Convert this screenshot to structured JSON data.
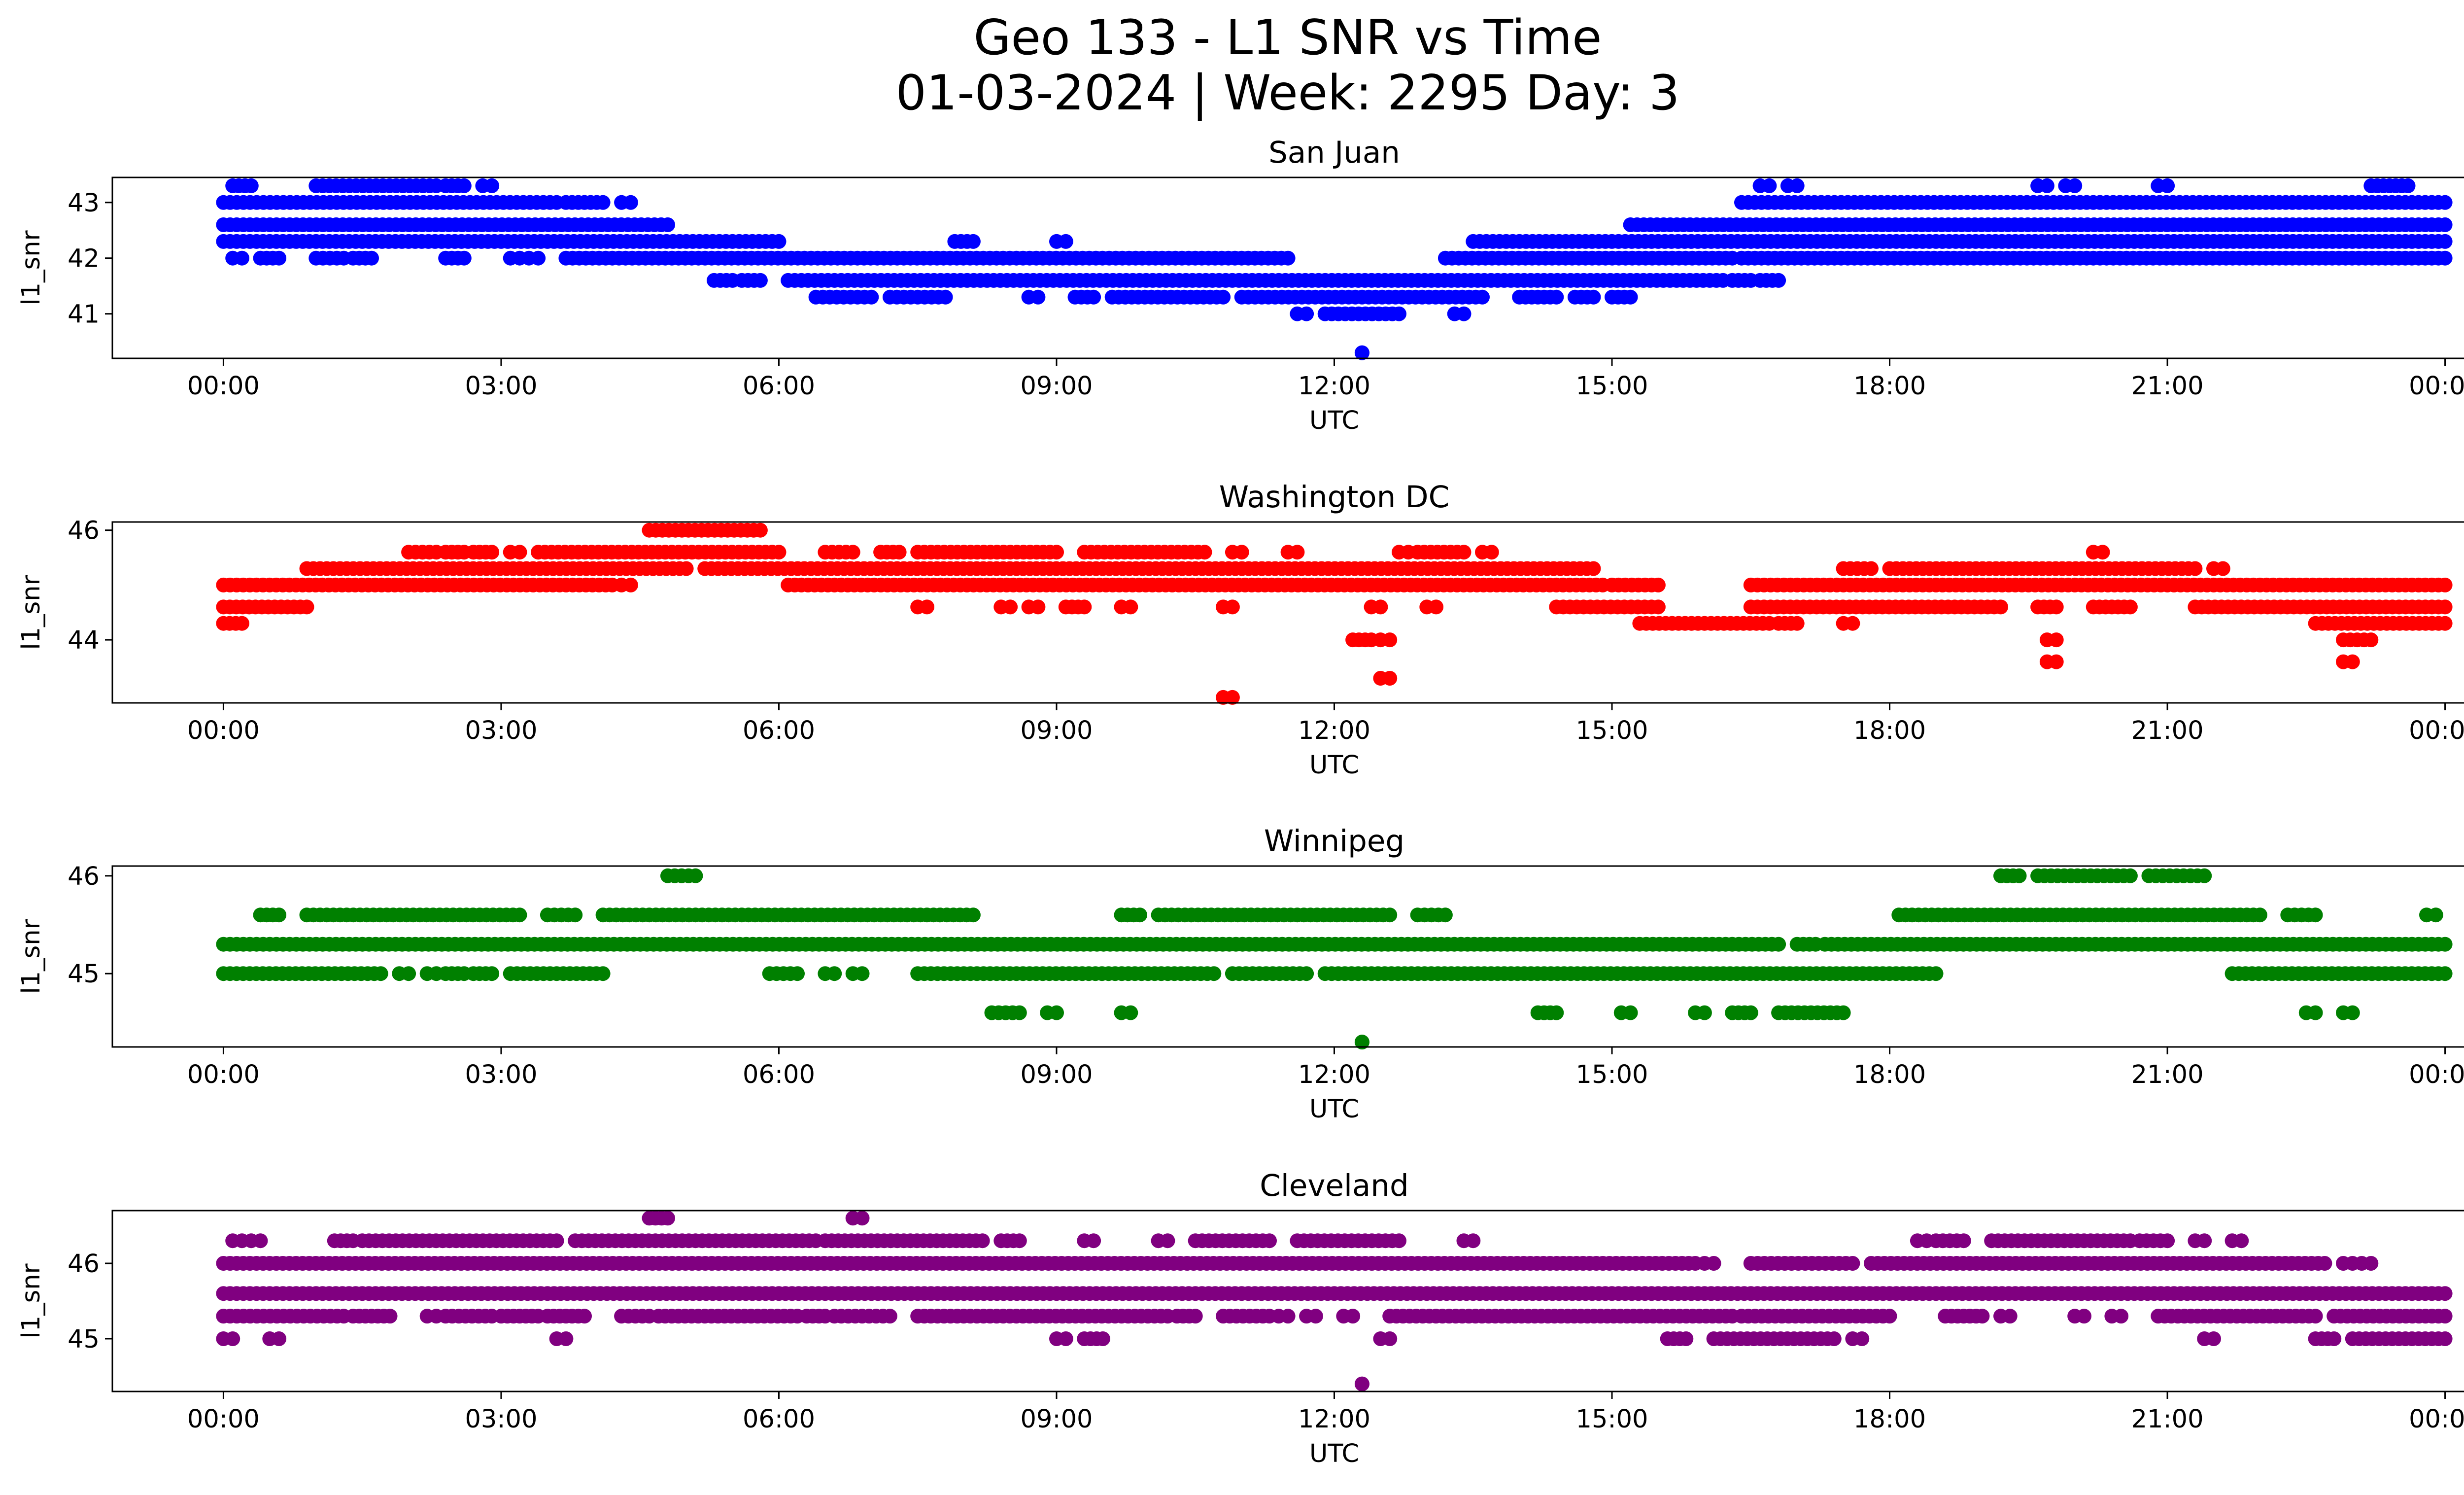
{
  "figure": {
    "title_line1": "Geo 133 - L1 SNR vs Time",
    "title_line2": "01-03-2024 | Week: 2295 Day: 3"
  },
  "chart_data": [
    {
      "type": "scatter",
      "title": "San Juan",
      "xlabel": "UTC",
      "ylabel": "l1_snr",
      "color": "#0000ff",
      "x_ticks": [
        "00:00",
        "03:00",
        "06:00",
        "09:00",
        "12:00",
        "15:00",
        "18:00",
        "21:00",
        "00:00"
      ],
      "xlim_hours": [
        -1.2,
        25.2
      ],
      "yticks": [
        41,
        42,
        43
      ],
      "ylim": [
        40.2,
        43.45
      ],
      "levels": [
        {
          "y": 43.3,
          "ranges": [
            [
              0.1,
              0.3
            ],
            [
              1.0,
              2.3
            ],
            [
              2.4,
              2.6
            ],
            [
              2.8,
              2.9
            ],
            [
              16.6,
              16.7
            ],
            [
              16.9,
              17.0
            ],
            [
              19.6,
              19.7
            ],
            [
              19.9,
              20.0
            ],
            [
              20.9,
              21.0
            ],
            [
              23.2,
              23.6
            ]
          ]
        },
        {
          "y": 43.0,
          "ranges": [
            [
              0.0,
              3.6
            ],
            [
              3.7,
              4.1
            ],
            [
              4.3,
              4.4
            ],
            [
              16.4,
              24.0
            ]
          ]
        },
        {
          "y": 42.6,
          "ranges": [
            [
              0.0,
              4.8
            ],
            [
              15.2,
              24.0
            ]
          ]
        },
        {
          "y": 42.3,
          "ranges": [
            [
              0.0,
              6.0
            ],
            [
              7.9,
              8.1
            ],
            [
              9.0,
              9.1
            ],
            [
              13.5,
              24.0
            ]
          ]
        },
        {
          "y": 42.0,
          "ranges": [
            [
              0.1,
              0.2
            ],
            [
              0.4,
              0.6
            ],
            [
              1.0,
              1.3
            ],
            [
              1.4,
              1.6
            ],
            [
              2.4,
              2.6
            ],
            [
              3.1,
              3.2
            ],
            [
              3.3,
              3.4
            ],
            [
              3.7,
              11.5
            ],
            [
              13.2,
              16.3
            ],
            [
              16.4,
              24.0
            ]
          ]
        },
        {
          "y": 41.6,
          "ranges": [
            [
              5.3,
              5.5
            ],
            [
              5.6,
              5.8
            ],
            [
              6.1,
              16.2
            ],
            [
              16.3,
              16.5
            ],
            [
              16.6,
              16.8
            ]
          ]
        },
        {
          "y": 41.3,
          "ranges": [
            [
              6.4,
              7.0
            ],
            [
              7.2,
              7.8
            ],
            [
              8.7,
              8.8
            ],
            [
              9.2,
              9.4
            ],
            [
              9.6,
              10.8
            ],
            [
              11.0,
              13.6
            ],
            [
              14.0,
              14.4
            ],
            [
              14.6,
              14.8
            ],
            [
              15.0,
              15.2
            ]
          ]
        },
        {
          "y": 41.0,
          "ranges": [
            [
              11.6,
              11.7
            ],
            [
              11.9,
              12.7
            ],
            [
              13.3,
              13.4
            ]
          ]
        },
        {
          "y": 40.3,
          "ranges": [
            [
              12.3,
              12.3
            ]
          ]
        }
      ]
    },
    {
      "type": "scatter",
      "title": "Washington DC",
      "xlabel": "UTC",
      "ylabel": "l1_snr",
      "color": "#ff0000",
      "x_ticks": [
        "00:00",
        "03:00",
        "06:00",
        "09:00",
        "12:00",
        "15:00",
        "18:00",
        "21:00",
        "00:00"
      ],
      "xlim_hours": [
        -1.2,
        25.2
      ],
      "yticks": [
        44,
        46
      ],
      "ylim": [
        42.85,
        46.15
      ],
      "levels": [
        {
          "y": 46.0,
          "ranges": [
            [
              4.6,
              5.8
            ]
          ]
        },
        {
          "y": 45.6,
          "ranges": [
            [
              2.0,
              2.3
            ],
            [
              2.4,
              2.6
            ],
            [
              2.7,
              2.9
            ],
            [
              3.1,
              3.2
            ],
            [
              3.4,
              6.0
            ],
            [
              6.5,
              6.8
            ],
            [
              7.1,
              7.3
            ],
            [
              7.5,
              9.0
            ],
            [
              9.3,
              10.6
            ],
            [
              10.9,
              11.0
            ],
            [
              11.5,
              11.6
            ],
            [
              12.7,
              12.8
            ],
            [
              12.9,
              13.4
            ],
            [
              13.6,
              13.7
            ],
            [
              20.2,
              20.3
            ]
          ]
        },
        {
          "y": 45.3,
          "ranges": [
            [
              0.9,
              5.0
            ],
            [
              5.2,
              14.8
            ],
            [
              17.5,
              17.8
            ],
            [
              18.0,
              21.3
            ],
            [
              21.5,
              21.6
            ]
          ]
        },
        {
          "y": 45.0,
          "ranges": [
            [
              0.0,
              4.2
            ],
            [
              4.3,
              4.4
            ],
            [
              6.1,
              14.9
            ],
            [
              15.0,
              15.5
            ],
            [
              16.5,
              24.0
            ]
          ]
        },
        {
          "y": 44.6,
          "ranges": [
            [
              0.0,
              0.9
            ],
            [
              7.5,
              7.6
            ],
            [
              8.4,
              8.5
            ],
            [
              8.7,
              8.8
            ],
            [
              9.1,
              9.3
            ],
            [
              9.7,
              9.8
            ],
            [
              10.8,
              10.9
            ],
            [
              12.4,
              12.5
            ],
            [
              13.0,
              13.1
            ],
            [
              14.4,
              15.5
            ],
            [
              16.5,
              19.2
            ],
            [
              19.6,
              19.8
            ],
            [
              20.2,
              20.6
            ],
            [
              21.3,
              24.0
            ]
          ]
        },
        {
          "y": 44.3,
          "ranges": [
            [
              0.0,
              0.2
            ],
            [
              15.3,
              16.7
            ],
            [
              16.8,
              17.0
            ],
            [
              17.5,
              17.6
            ],
            [
              22.6,
              24.0
            ]
          ]
        },
        {
          "y": 44.0,
          "ranges": [
            [
              12.2,
              12.4
            ],
            [
              12.5,
              12.6
            ],
            [
              19.7,
              19.8
            ],
            [
              22.9,
              23.2
            ]
          ]
        },
        {
          "y": 43.6,
          "ranges": [
            [
              19.7,
              19.8
            ],
            [
              22.9,
              23.0
            ]
          ]
        },
        {
          "y": 43.3,
          "ranges": [
            [
              12.5,
              12.6
            ]
          ]
        },
        {
          "y": 42.95,
          "ranges": [
            [
              10.8,
              10.9
            ]
          ]
        }
      ]
    },
    {
      "type": "scatter",
      "title": "Winnipeg",
      "xlabel": "UTC",
      "ylabel": "l1_snr",
      "color": "#008000",
      "x_ticks": [
        "00:00",
        "03:00",
        "06:00",
        "09:00",
        "12:00",
        "15:00",
        "18:00",
        "21:00",
        "00:00"
      ],
      "xlim_hours": [
        -1.2,
        25.2
      ],
      "yticks": [
        45,
        46
      ],
      "ylim": [
        44.25,
        46.1
      ],
      "levels": [
        {
          "y": 46.0,
          "ranges": [
            [
              4.8,
              5.1
            ],
            [
              19.2,
              19.4
            ],
            [
              19.6,
              20.6
            ],
            [
              20.8,
              21.4
            ]
          ]
        },
        {
          "y": 45.6,
          "ranges": [
            [
              0.4,
              0.6
            ],
            [
              0.9,
              3.2
            ],
            [
              3.5,
              3.8
            ],
            [
              4.1,
              8.1
            ],
            [
              9.7,
              9.9
            ],
            [
              10.1,
              12.6
            ],
            [
              12.9,
              13.2
            ],
            [
              18.1,
              22.0
            ],
            [
              22.3,
              22.6
            ],
            [
              23.8,
              23.9
            ]
          ]
        },
        {
          "y": 45.3,
          "ranges": [
            [
              0.0,
              16.8
            ],
            [
              17.0,
              17.2
            ],
            [
              17.3,
              24.0
            ]
          ]
        },
        {
          "y": 45.0,
          "ranges": [
            [
              0.0,
              1.7
            ],
            [
              1.9,
              2.0
            ],
            [
              2.2,
              2.3
            ],
            [
              2.4,
              2.6
            ],
            [
              2.7,
              2.9
            ],
            [
              3.1,
              4.1
            ],
            [
              5.9,
              6.2
            ],
            [
              6.5,
              6.6
            ],
            [
              6.8,
              6.9
            ],
            [
              7.5,
              10.7
            ],
            [
              10.9,
              11.7
            ],
            [
              11.9,
              18.5
            ],
            [
              21.7,
              24.0
            ]
          ]
        },
        {
          "y": 44.6,
          "ranges": [
            [
              8.3,
              8.6
            ],
            [
              8.9,
              9.0
            ],
            [
              9.7,
              9.8
            ],
            [
              14.2,
              14.4
            ],
            [
              15.1,
              15.2
            ],
            [
              15.9,
              16.0
            ],
            [
              16.3,
              16.5
            ],
            [
              16.8,
              17.5
            ],
            [
              22.5,
              22.6
            ],
            [
              22.9,
              23.0
            ]
          ]
        },
        {
          "y": 44.3,
          "ranges": [
            [
              12.3,
              12.3
            ]
          ]
        }
      ]
    },
    {
      "type": "scatter",
      "title": "Cleveland",
      "xlabel": "UTC",
      "ylabel": "l1_snr",
      "color": "#800080",
      "x_ticks": [
        "00:00",
        "03:00",
        "06:00",
        "09:00",
        "12:00",
        "15:00",
        "18:00",
        "21:00",
        "00:00"
      ],
      "xlim_hours": [
        -1.2,
        25.2
      ],
      "yticks": [
        45,
        46
      ],
      "ylim": [
        44.3,
        46.7
      ],
      "levels": [
        {
          "y": 46.6,
          "ranges": [
            [
              4.6,
              4.8
            ],
            [
              6.8,
              6.9
            ]
          ]
        },
        {
          "y": 46.3,
          "ranges": [
            [
              0.1,
              0.2
            ],
            [
              0.3,
              0.4
            ],
            [
              1.2,
              1.4
            ],
            [
              1.5,
              3.6
            ],
            [
              3.8,
              6.4
            ],
            [
              6.5,
              8.2
            ],
            [
              8.4,
              8.6
            ],
            [
              9.3,
              9.4
            ],
            [
              10.1,
              10.2
            ],
            [
              10.5,
              11.3
            ],
            [
              11.6,
              12.7
            ],
            [
              13.4,
              13.5
            ],
            [
              18.3,
              18.4
            ],
            [
              18.5,
              18.8
            ],
            [
              19.1,
              20.6
            ],
            [
              20.7,
              21.0
            ],
            [
              21.3,
              21.4
            ],
            [
              21.7,
              21.8
            ]
          ]
        },
        {
          "y": 46.0,
          "ranges": [
            [
              0.0,
              15.9
            ],
            [
              16.0,
              16.1
            ],
            [
              16.5,
              17.6
            ],
            [
              17.8,
              22.7
            ],
            [
              22.9,
              23.0
            ],
            [
              23.1,
              23.2
            ]
          ]
        },
        {
          "y": 45.6,
          "ranges": [
            [
              0.0,
              24.0
            ]
          ]
        },
        {
          "y": 45.3,
          "ranges": [
            [
              0.0,
              1.3
            ],
            [
              1.4,
              1.8
            ],
            [
              2.2,
              2.3
            ],
            [
              2.4,
              2.9
            ],
            [
              3.0,
              3.4
            ],
            [
              3.5,
              3.9
            ],
            [
              4.3,
              4.6
            ],
            [
              4.7,
              6.2
            ],
            [
              6.3,
              6.5
            ],
            [
              6.6,
              7.2
            ],
            [
              7.5,
              10.2
            ],
            [
              10.3,
              10.5
            ],
            [
              10.8,
              11.3
            ],
            [
              11.4,
              11.5
            ],
            [
              11.7,
              11.8
            ],
            [
              12.1,
              12.2
            ],
            [
              12.6,
              16.3
            ],
            [
              16.4,
              18.0
            ],
            [
              18.6,
              19.0
            ],
            [
              19.2,
              19.3
            ],
            [
              20.0,
              20.1
            ],
            [
              20.4,
              20.5
            ],
            [
              20.9,
              22.6
            ],
            [
              22.8,
              24.0
            ]
          ]
        },
        {
          "y": 45.0,
          "ranges": [
            [
              0.0,
              0.1
            ],
            [
              0.5,
              0.6
            ],
            [
              3.6,
              3.7
            ],
            [
              9.0,
              9.1
            ],
            [
              9.3,
              9.5
            ],
            [
              12.5,
              12.6
            ],
            [
              15.6,
              15.8
            ],
            [
              16.1,
              17.4
            ],
            [
              17.6,
              17.7
            ],
            [
              21.4,
              21.5
            ],
            [
              22.6,
              22.8
            ],
            [
              23.0,
              24.0
            ]
          ]
        },
        {
          "y": 44.4,
          "ranges": [
            [
              12.3,
              12.3
            ]
          ]
        }
      ]
    }
  ]
}
